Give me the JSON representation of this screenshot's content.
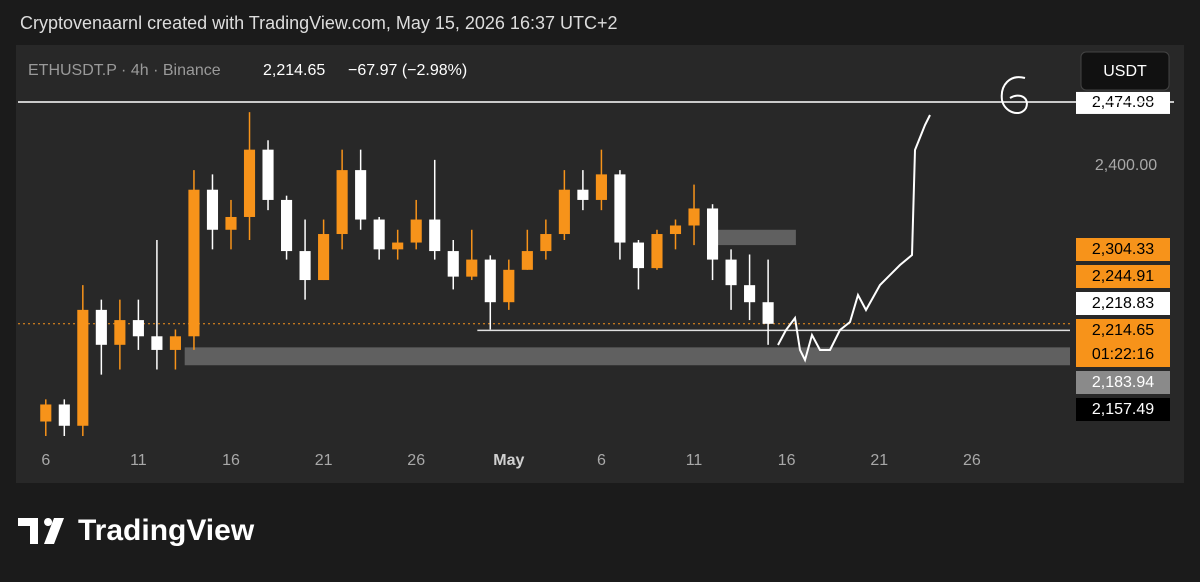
{
  "header": {
    "caption": "Cryptovenaarnl created with TradingView.com, May 15, 2026 16:37 UTC+2"
  },
  "chart_data": {
    "type": "candlestick",
    "symbol": "ETHUSDT.P · 4h · Binance",
    "last": "2,214.65",
    "change": "−67.97 (−2.98%)",
    "currency": "USDT",
    "x": [
      0,
      1,
      2,
      3,
      4,
      5,
      6,
      7,
      8,
      9,
      10,
      11,
      12,
      13,
      14,
      15,
      16,
      17,
      18,
      19,
      20,
      21,
      22,
      23,
      24,
      25,
      26,
      27,
      28,
      29,
      30,
      31,
      32,
      33,
      34,
      35,
      36,
      37,
      38,
      39
    ],
    "open": [
      2100,
      2120,
      2095,
      2231,
      2190,
      2219,
      2200,
      2184,
      2200,
      2372,
      2325,
      2340,
      2419,
      2360,
      2300,
      2266,
      2320,
      2395,
      2337,
      2302,
      2310,
      2337,
      2300,
      2270,
      2290,
      2240,
      2278,
      2300,
      2320,
      2372,
      2360,
      2390,
      2310,
      2280,
      2320,
      2330,
      2350,
      2290,
      2260,
      2240
    ],
    "high": [
      2126,
      2126,
      2260,
      2243,
      2243,
      2243,
      2313,
      2208,
      2395,
      2390,
      2360,
      2463,
      2430,
      2365,
      2337,
      2337,
      2419,
      2419,
      2340,
      2325,
      2360,
      2407,
      2313,
      2325,
      2295,
      2290,
      2325,
      2337,
      2395,
      2395,
      2419,
      2395,
      2313,
      2325,
      2337,
      2378,
      2355,
      2302,
      2296,
      2290
    ],
    "low": [
      2083,
      2083,
      2083,
      2155,
      2161,
      2184,
      2161,
      2161,
      2184,
      2302,
      2302,
      2313,
      2348,
      2290,
      2243,
      2266,
      2302,
      2325,
      2290,
      2290,
      2302,
      2290,
      2255,
      2266,
      2208,
      2231,
      2278,
      2290,
      2313,
      2348,
      2348,
      2290,
      2255,
      2278,
      2302,
      2307,
      2266,
      2231,
      2219,
      2190
    ],
    "close": [
      2120,
      2095,
      2231,
      2190,
      2219,
      2200,
      2184,
      2200,
      2372,
      2325,
      2340,
      2419,
      2360,
      2300,
      2266,
      2320,
      2395,
      2337,
      2302,
      2310,
      2337,
      2300,
      2270,
      2290,
      2240,
      2278,
      2300,
      2320,
      2372,
      2360,
      2390,
      2310,
      2280,
      2320,
      2330,
      2350,
      2290,
      2260,
      2240,
      2214.65
    ],
    "up_color": "#f7931a",
    "down_color": "#ffffff",
    "xlim": [
      -1.5,
      55.3
    ],
    "xticks": [
      {
        "value": 0,
        "label": "6"
      },
      {
        "value": 5,
        "label": "11"
      },
      {
        "value": 10,
        "label": "16"
      },
      {
        "value": 15,
        "label": "21"
      },
      {
        "value": 20,
        "label": "26"
      },
      {
        "value": 25,
        "label": "May"
      },
      {
        "value": 30,
        "label": "6"
      },
      {
        "value": 35,
        "label": "11"
      },
      {
        "value": 40,
        "label": "16"
      },
      {
        "value": 45,
        "label": "21"
      },
      {
        "value": 50,
        "label": "26"
      }
    ],
    "ylim": [
      2083,
      2489
    ],
    "yticks": [
      {
        "value": 2400,
        "label": "2,400.00"
      }
    ],
    "levels": [
      {
        "value": 2474.98,
        "label": "2,474.98"
      }
    ],
    "lines": [
      {
        "value": 2207,
        "start": 23.3
      }
    ],
    "zones": [
      {
        "low": 2307,
        "high": 2325,
        "start": 36.2,
        "end": 40.5
      },
      {
        "low": 2166,
        "high": 2187,
        "start": 7.5,
        "end": 55.3
      }
    ],
    "current_price": 2214.65,
    "price_labels": [
      {
        "label": "2,304.33",
        "bg": "#f7931a",
        "fg": "#000000"
      },
      {
        "label": "2,244.91",
        "bg": "#f7931a",
        "fg": "#000000"
      },
      {
        "label": "2,218.83",
        "bg": "#ffffff",
        "fg": "#000000"
      },
      {
        "label": "2,214.65",
        "sub": "01:22:16",
        "bg": "#f7931a",
        "fg": "#000000"
      },
      {
        "label": "2,183.94",
        "bg": "#8a8a8a",
        "fg": "#ffffff"
      },
      {
        "label": "2,157.49",
        "bg": "#000000",
        "fg": "#ffffff"
      }
    ]
  },
  "footer": {
    "logo": "TradingView"
  }
}
